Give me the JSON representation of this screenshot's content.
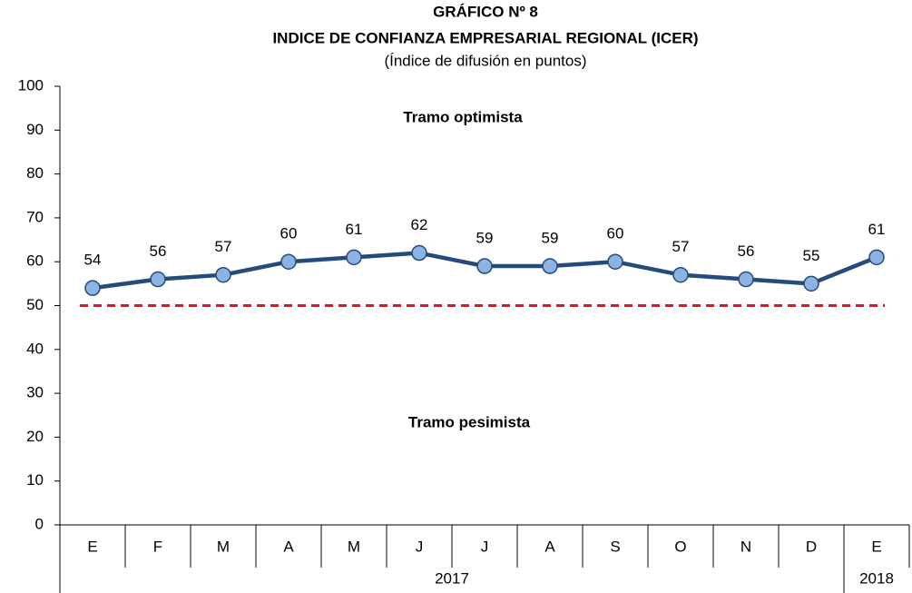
{
  "chart_data": {
    "type": "line",
    "title": "GRÁFICO Nº 8",
    "subtitle": "INDICE DE CONFIANZA EMPRESARIAL REGIONAL (ICER)",
    "unit_note": "(Índice de difusión en puntos)",
    "categories": [
      "E",
      "F",
      "M",
      "A",
      "M",
      "J",
      "J",
      "A",
      "S",
      "O",
      "N",
      "D",
      "E"
    ],
    "group_labels": [
      "2017",
      "2018"
    ],
    "group_sizes": [
      12,
      1
    ],
    "series": [
      {
        "color": "#254b7d",
        "marker_color": "#8db3e2",
        "values": [
          54,
          56,
          57,
          60,
          61,
          62,
          59,
          59,
          60,
          57,
          56,
          55,
          61
        ]
      }
    ],
    "threshold": {
      "value": 50,
      "color": "#e8141c"
    },
    "annotations": [
      "Tramo optimista",
      "Tramo pesimista"
    ],
    "ylim": [
      0,
      100
    ],
    "yticks": [
      0,
      10,
      20,
      30,
      40,
      50,
      60,
      70,
      80,
      90,
      100
    ]
  }
}
